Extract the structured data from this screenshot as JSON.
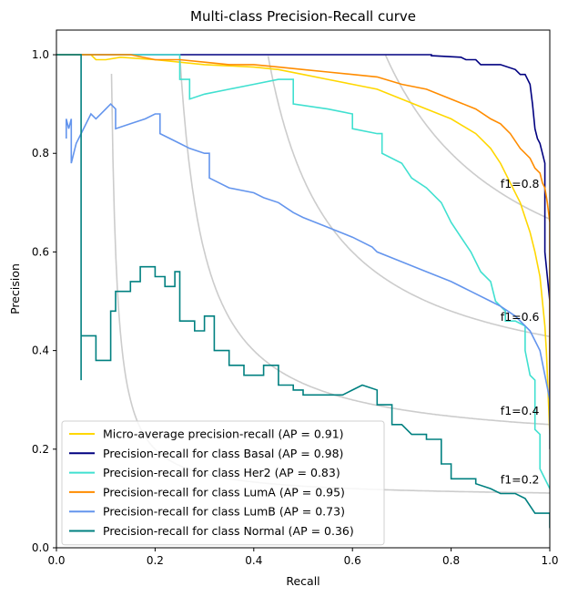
{
  "chart_data": {
    "type": "line",
    "title": "Multi-class Precision-Recall curve",
    "xlabel": "Recall",
    "ylabel": "Precision",
    "xlim": [
      0.0,
      1.0
    ],
    "ylim": [
      0.0,
      1.05
    ],
    "x_ticks": [
      "0.0",
      "0.2",
      "0.4",
      "0.6",
      "0.8",
      "1.0"
    ],
    "y_ticks": [
      "0.0",
      "0.2",
      "0.4",
      "0.6",
      "0.8",
      "1.0"
    ],
    "grid": false,
    "legend_position": "lower-left",
    "iso_f1": [
      {
        "f1": 0.2,
        "label": "f1=0.2",
        "label_at": [
          0.9,
          0.13
        ]
      },
      {
        "f1": 0.4,
        "label": "f1=0.4",
        "label_at": [
          0.9,
          0.27
        ]
      },
      {
        "f1": 0.6,
        "label": "f1=0.6",
        "label_at": [
          0.9,
          0.46
        ]
      },
      {
        "f1": 0.8,
        "label": "f1=0.8",
        "label_at": [
          0.9,
          0.73
        ]
      }
    ],
    "iso_color": "#cccccc",
    "series": [
      {
        "name": "Micro-average precision-recall (AP = 0.91)",
        "color": "#ffd700",
        "points": [
          [
            0,
            1.0
          ],
          [
            0.07,
            1.0
          ],
          [
            0.08,
            0.99
          ],
          [
            0.1,
            0.99
          ],
          [
            0.13,
            0.995
          ],
          [
            0.2,
            0.99
          ],
          [
            0.3,
            0.98
          ],
          [
            0.4,
            0.975
          ],
          [
            0.45,
            0.97
          ],
          [
            0.5,
            0.96
          ],
          [
            0.55,
            0.95
          ],
          [
            0.6,
            0.94
          ],
          [
            0.65,
            0.93
          ],
          [
            0.7,
            0.91
          ],
          [
            0.75,
            0.89
          ],
          [
            0.8,
            0.87
          ],
          [
            0.85,
            0.84
          ],
          [
            0.88,
            0.81
          ],
          [
            0.9,
            0.78
          ],
          [
            0.92,
            0.74
          ],
          [
            0.94,
            0.7
          ],
          [
            0.95,
            0.67
          ],
          [
            0.96,
            0.64
          ],
          [
            0.97,
            0.6
          ],
          [
            0.98,
            0.55
          ],
          [
            0.985,
            0.5
          ],
          [
            0.99,
            0.45
          ],
          [
            0.993,
            0.4
          ],
          [
            0.996,
            0.33
          ],
          [
            1.0,
            0.23
          ]
        ]
      },
      {
        "name": "Precision-recall for class Basal (AP = 0.98)",
        "color": "#000080",
        "points": [
          [
            0,
            1.0
          ],
          [
            0.25,
            1.0
          ],
          [
            0.5,
            1.0
          ],
          [
            0.76,
            1.0
          ],
          [
            0.76,
            0.998
          ],
          [
            0.82,
            0.995
          ],
          [
            0.83,
            0.99
          ],
          [
            0.85,
            0.99
          ],
          [
            0.86,
            0.98
          ],
          [
            0.9,
            0.98
          ],
          [
            0.93,
            0.97
          ],
          [
            0.94,
            0.96
          ],
          [
            0.95,
            0.96
          ],
          [
            0.96,
            0.94
          ],
          [
            0.965,
            0.9
          ],
          [
            0.97,
            0.85
          ],
          [
            0.975,
            0.83
          ],
          [
            0.98,
            0.82
          ],
          [
            0.985,
            0.8
          ],
          [
            0.99,
            0.78
          ],
          [
            0.99,
            0.6
          ],
          [
            0.995,
            0.55
          ],
          [
            1.0,
            0.5
          ],
          [
            1.0,
            0.31
          ]
        ]
      },
      {
        "name": "Precision-recall for class Her2 (AP = 0.83)",
        "color": "#40e0d0",
        "points": [
          [
            0,
            1.0
          ],
          [
            0.25,
            1.0
          ],
          [
            0.25,
            0.95
          ],
          [
            0.27,
            0.95
          ],
          [
            0.27,
            0.91
          ],
          [
            0.3,
            0.92
          ],
          [
            0.35,
            0.93
          ],
          [
            0.4,
            0.94
          ],
          [
            0.45,
            0.95
          ],
          [
            0.48,
            0.95
          ],
          [
            0.48,
            0.9
          ],
          [
            0.55,
            0.89
          ],
          [
            0.6,
            0.88
          ],
          [
            0.6,
            0.85
          ],
          [
            0.65,
            0.84
          ],
          [
            0.66,
            0.84
          ],
          [
            0.66,
            0.8
          ],
          [
            0.7,
            0.78
          ],
          [
            0.72,
            0.75
          ],
          [
            0.75,
            0.73
          ],
          [
            0.78,
            0.7
          ],
          [
            0.8,
            0.66
          ],
          [
            0.82,
            0.63
          ],
          [
            0.84,
            0.6
          ],
          [
            0.86,
            0.56
          ],
          [
            0.88,
            0.54
          ],
          [
            0.89,
            0.5
          ],
          [
            0.91,
            0.48
          ],
          [
            0.91,
            0.46
          ],
          [
            0.93,
            0.46
          ],
          [
            0.95,
            0.45
          ],
          [
            0.95,
            0.4
          ],
          [
            0.96,
            0.35
          ],
          [
            0.97,
            0.34
          ],
          [
            0.97,
            0.24
          ],
          [
            0.98,
            0.23
          ],
          [
            0.98,
            0.16
          ],
          [
            1.0,
            0.12
          ]
        ]
      },
      {
        "name": "Precision-recall for class LumA (AP = 0.95)",
        "color": "#ff8c00",
        "points": [
          [
            0,
            1.0
          ],
          [
            0.15,
            1.0
          ],
          [
            0.2,
            0.99
          ],
          [
            0.25,
            0.99
          ],
          [
            0.3,
            0.985
          ],
          [
            0.35,
            0.98
          ],
          [
            0.4,
            0.98
          ],
          [
            0.45,
            0.975
          ],
          [
            0.5,
            0.97
          ],
          [
            0.55,
            0.965
          ],
          [
            0.6,
            0.96
          ],
          [
            0.65,
            0.955
          ],
          [
            0.7,
            0.94
          ],
          [
            0.75,
            0.93
          ],
          [
            0.8,
            0.91
          ],
          [
            0.85,
            0.89
          ],
          [
            0.88,
            0.87
          ],
          [
            0.9,
            0.86
          ],
          [
            0.92,
            0.84
          ],
          [
            0.94,
            0.81
          ],
          [
            0.96,
            0.79
          ],
          [
            0.97,
            0.77
          ],
          [
            0.98,
            0.76
          ],
          [
            0.985,
            0.74
          ],
          [
            0.99,
            0.73
          ],
          [
            0.995,
            0.7
          ],
          [
            1.0,
            0.66
          ],
          [
            1.0,
            0.2
          ]
        ]
      },
      {
        "name": "Precision-recall for class LumB (AP = 0.73)",
        "color": "#6495ed",
        "points": [
          [
            0.02,
            0.83
          ],
          [
            0.02,
            0.87
          ],
          [
            0.025,
            0.85
          ],
          [
            0.03,
            0.87
          ],
          [
            0.03,
            0.78
          ],
          [
            0.035,
            0.8
          ],
          [
            0.04,
            0.82
          ],
          [
            0.05,
            0.84
          ],
          [
            0.06,
            0.86
          ],
          [
            0.07,
            0.88
          ],
          [
            0.08,
            0.87
          ],
          [
            0.1,
            0.89
          ],
          [
            0.11,
            0.9
          ],
          [
            0.12,
            0.89
          ],
          [
            0.12,
            0.85
          ],
          [
            0.15,
            0.86
          ],
          [
            0.18,
            0.87
          ],
          [
            0.2,
            0.88
          ],
          [
            0.21,
            0.88
          ],
          [
            0.21,
            0.84
          ],
          [
            0.23,
            0.83
          ],
          [
            0.25,
            0.82
          ],
          [
            0.27,
            0.81
          ],
          [
            0.3,
            0.8
          ],
          [
            0.31,
            0.8
          ],
          [
            0.31,
            0.75
          ],
          [
            0.35,
            0.73
          ],
          [
            0.4,
            0.72
          ],
          [
            0.42,
            0.71
          ],
          [
            0.45,
            0.7
          ],
          [
            0.48,
            0.68
          ],
          [
            0.5,
            0.67
          ],
          [
            0.55,
            0.65
          ],
          [
            0.6,
            0.63
          ],
          [
            0.64,
            0.61
          ],
          [
            0.65,
            0.6
          ],
          [
            0.7,
            0.58
          ],
          [
            0.75,
            0.56
          ],
          [
            0.8,
            0.54
          ],
          [
            0.84,
            0.52
          ],
          [
            0.88,
            0.5
          ],
          [
            0.9,
            0.49
          ],
          [
            0.93,
            0.47
          ],
          [
            0.96,
            0.44
          ],
          [
            0.98,
            0.4
          ],
          [
            0.99,
            0.35
          ],
          [
            1.0,
            0.3
          ],
          [
            1.0,
            0.2
          ]
        ]
      },
      {
        "name": "Precision-recall for class Normal (AP = 0.36)",
        "color": "#008080",
        "points": [
          [
            0,
            1.0
          ],
          [
            0.05,
            1.0
          ],
          [
            0.05,
            0.34
          ],
          [
            0.05,
            0.43
          ],
          [
            0.08,
            0.43
          ],
          [
            0.08,
            0.38
          ],
          [
            0.11,
            0.38
          ],
          [
            0.11,
            0.48
          ],
          [
            0.12,
            0.48
          ],
          [
            0.12,
            0.52
          ],
          [
            0.15,
            0.52
          ],
          [
            0.15,
            0.54
          ],
          [
            0.17,
            0.54
          ],
          [
            0.17,
            0.57
          ],
          [
            0.2,
            0.57
          ],
          [
            0.2,
            0.55
          ],
          [
            0.22,
            0.55
          ],
          [
            0.22,
            0.53
          ],
          [
            0.24,
            0.53
          ],
          [
            0.24,
            0.56
          ],
          [
            0.25,
            0.56
          ],
          [
            0.25,
            0.46
          ],
          [
            0.28,
            0.46
          ],
          [
            0.28,
            0.44
          ],
          [
            0.3,
            0.44
          ],
          [
            0.3,
            0.47
          ],
          [
            0.32,
            0.47
          ],
          [
            0.32,
            0.4
          ],
          [
            0.35,
            0.4
          ],
          [
            0.35,
            0.37
          ],
          [
            0.38,
            0.37
          ],
          [
            0.38,
            0.35
          ],
          [
            0.42,
            0.35
          ],
          [
            0.42,
            0.37
          ],
          [
            0.45,
            0.37
          ],
          [
            0.45,
            0.33
          ],
          [
            0.48,
            0.33
          ],
          [
            0.48,
            0.32
          ],
          [
            0.5,
            0.32
          ],
          [
            0.5,
            0.31
          ],
          [
            0.55,
            0.31
          ],
          [
            0.58,
            0.31
          ],
          [
            0.6,
            0.32
          ],
          [
            0.62,
            0.33
          ],
          [
            0.65,
            0.32
          ],
          [
            0.65,
            0.29
          ],
          [
            0.68,
            0.29
          ],
          [
            0.68,
            0.25
          ],
          [
            0.7,
            0.25
          ],
          [
            0.72,
            0.23
          ],
          [
            0.75,
            0.23
          ],
          [
            0.75,
            0.22
          ],
          [
            0.78,
            0.22
          ],
          [
            0.78,
            0.17
          ],
          [
            0.8,
            0.17
          ],
          [
            0.8,
            0.14
          ],
          [
            0.82,
            0.14
          ],
          [
            0.85,
            0.14
          ],
          [
            0.85,
            0.13
          ],
          [
            0.88,
            0.12
          ],
          [
            0.9,
            0.11
          ],
          [
            0.93,
            0.11
          ],
          [
            0.95,
            0.1
          ],
          [
            0.97,
            0.07
          ],
          [
            1.0,
            0.07
          ],
          [
            1.0,
            0.04
          ]
        ]
      }
    ]
  }
}
